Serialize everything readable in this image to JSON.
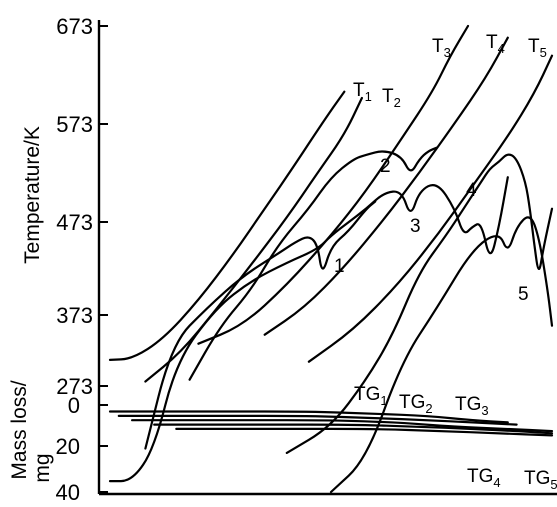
{
  "chart_data": {
    "type": "line",
    "title": "",
    "temperature_axis": {
      "label": "Temperature/K",
      "ticks": [
        "673",
        "573",
        "473",
        "373",
        "273"
      ],
      "tick_values": [
        673,
        573,
        473,
        373,
        273
      ],
      "range": [
        273,
        673
      ]
    },
    "mass_axis": {
      "label_line1": "Mass loss/",
      "label_line2": "mg",
      "ticks": [
        "0",
        "20",
        "40"
      ],
      "tick_values": [
        0,
        20,
        40
      ],
      "range": [
        0,
        40
      ],
      "direction": "down"
    },
    "x_axis": {
      "label": "",
      "ticks": []
    },
    "series": [
      {
        "name": "T",
        "sub": "1",
        "group": "temperature",
        "points": [
          [
            0.0,
            302
          ],
          [
            0.05,
            303
          ],
          [
            0.12,
            325
          ],
          [
            0.2,
            368
          ],
          [
            0.28,
            420
          ],
          [
            0.35,
            470
          ],
          [
            0.42,
            520
          ],
          [
            0.48,
            565
          ],
          [
            0.53,
            600
          ]
        ]
      },
      {
        "name": "T",
        "sub": "2",
        "group": "temperature",
        "points": [
          [
            0.08,
            278
          ],
          [
            0.16,
            310
          ],
          [
            0.24,
            358
          ],
          [
            0.32,
            408
          ],
          [
            0.4,
            460
          ],
          [
            0.47,
            510
          ],
          [
            0.53,
            552
          ],
          [
            0.57,
            593
          ]
        ]
      },
      {
        "name": "T",
        "sub": "3",
        "group": "temperature",
        "points": [
          [
            0.2,
            320
          ],
          [
            0.3,
            340
          ],
          [
            0.4,
            385
          ],
          [
            0.5,
            440
          ],
          [
            0.58,
            490
          ],
          [
            0.66,
            548
          ],
          [
            0.73,
            600
          ],
          [
            0.77,
            640
          ],
          [
            0.81,
            673
          ]
        ]
      },
      {
        "name": "T",
        "sub": "4",
        "group": "temperature",
        "points": [
          [
            0.35,
            330
          ],
          [
            0.44,
            360
          ],
          [
            0.53,
            405
          ],
          [
            0.62,
            458
          ],
          [
            0.7,
            510
          ],
          [
            0.78,
            565
          ],
          [
            0.85,
            615
          ],
          [
            0.9,
            660
          ]
        ]
      },
      {
        "name": "T",
        "sub": "5",
        "group": "temperature",
        "points": [
          [
            0.45,
            300
          ],
          [
            0.55,
            335
          ],
          [
            0.65,
            385
          ],
          [
            0.74,
            440
          ],
          [
            0.82,
            495
          ],
          [
            0.9,
            550
          ],
          [
            0.96,
            598
          ],
          [
            1.0,
            640
          ]
        ]
      },
      {
        "name": "1",
        "group": "dta",
        "points": [
          [
            0.08,
            -20
          ],
          [
            0.14,
            320
          ],
          [
            0.22,
            360
          ],
          [
            0.3,
            395
          ],
          [
            0.38,
            420
          ],
          [
            0.42,
            433
          ],
          [
            0.45,
            440
          ],
          [
            0.47,
            430
          ],
          [
            0.48,
            395
          ],
          [
            0.5,
            428
          ],
          [
            0.54,
            445
          ],
          [
            0.58,
            470
          ],
          [
            0.6,
            478
          ]
        ]
      },
      {
        "name": "2",
        "group": "dta",
        "points": [
          [
            0.18,
            280
          ],
          [
            0.25,
            340
          ],
          [
            0.32,
            380
          ],
          [
            0.38,
            430
          ],
          [
            0.45,
            470
          ],
          [
            0.5,
            505
          ],
          [
            0.55,
            525
          ],
          [
            0.58,
            530
          ],
          [
            0.62,
            535
          ],
          [
            0.66,
            528
          ],
          [
            0.68,
            508
          ],
          [
            0.7,
            525
          ],
          [
            0.72,
            534
          ],
          [
            0.74,
            538
          ]
        ]
      },
      {
        "name": "3",
        "group": "dta",
        "points": [
          [
            0.0,
            -35
          ],
          [
            0.05,
            -35
          ],
          [
            0.1,
            -20
          ],
          [
            0.15,
            300
          ],
          [
            0.24,
            360
          ],
          [
            0.32,
            390
          ],
          [
            0.4,
            410
          ],
          [
            0.47,
            425
          ],
          [
            0.5,
            440
          ],
          [
            0.54,
            455
          ],
          [
            0.58,
            470
          ],
          [
            0.62,
            488
          ],
          [
            0.66,
            490
          ],
          [
            0.68,
            460
          ],
          [
            0.7,
            490
          ],
          [
            0.74,
            500
          ],
          [
            0.78,
            470
          ],
          [
            0.8,
            440
          ],
          [
            0.82,
            450
          ],
          [
            0.84,
            455
          ],
          [
            0.86,
            410
          ],
          [
            0.88,
            450
          ],
          [
            0.9,
            505
          ]
        ]
      },
      {
        "name": "4",
        "group": "dta",
        "points": [
          [
            0.4,
            -22
          ],
          [
            0.5,
            -10
          ],
          [
            0.58,
            280
          ],
          [
            0.64,
            330
          ],
          [
            0.7,
            400
          ],
          [
            0.76,
            440
          ],
          [
            0.8,
            470
          ],
          [
            0.84,
            500
          ],
          [
            0.86,
            515
          ],
          [
            0.88,
            522
          ],
          [
            0.9,
            532
          ],
          [
            0.92,
            526
          ],
          [
            0.94,
            500
          ],
          [
            0.95,
            470
          ],
          [
            0.96,
            430
          ],
          [
            0.97,
            395
          ],
          [
            0.98,
            425
          ],
          [
            1.0,
            470
          ]
        ]
      },
      {
        "name": "5",
        "group": "dta",
        "points": [
          [
            0.5,
            -40
          ],
          [
            0.58,
            -25
          ],
          [
            0.66,
            300
          ],
          [
            0.74,
            360
          ],
          [
            0.82,
            425
          ],
          [
            0.88,
            445
          ],
          [
            0.9,
            420
          ],
          [
            0.92,
            450
          ],
          [
            0.95,
            465
          ],
          [
            0.97,
            440
          ],
          [
            0.99,
            380
          ],
          [
            1.0,
            340
          ]
        ]
      },
      {
        "name": "TG",
        "sub": "1",
        "group": "tg",
        "points": [
          [
            0.0,
            3
          ],
          [
            0.25,
            3
          ],
          [
            0.45,
            3
          ],
          [
            0.6,
            4
          ],
          [
            0.72,
            5
          ],
          [
            0.82,
            7
          ],
          [
            0.9,
            8
          ]
        ]
      },
      {
        "name": "TG",
        "sub": "2",
        "group": "tg",
        "points": [
          [
            0.02,
            5
          ],
          [
            0.25,
            5
          ],
          [
            0.45,
            5
          ],
          [
            0.6,
            6
          ],
          [
            0.72,
            7
          ],
          [
            0.82,
            8
          ],
          [
            0.92,
            9
          ]
        ]
      },
      {
        "name": "TG",
        "sub": "3",
        "group": "tg",
        "points": [
          [
            0.05,
            7
          ],
          [
            0.3,
            7
          ],
          [
            0.5,
            7
          ],
          [
            0.65,
            8
          ],
          [
            0.78,
            10
          ],
          [
            0.9,
            11
          ],
          [
            1.0,
            12
          ]
        ]
      },
      {
        "name": "TG",
        "sub": "4",
        "group": "tg",
        "points": [
          [
            0.1,
            9
          ],
          [
            0.35,
            9
          ],
          [
            0.55,
            9
          ],
          [
            0.7,
            10
          ],
          [
            0.82,
            11
          ],
          [
            0.92,
            12
          ],
          [
            1.0,
            13
          ]
        ]
      },
      {
        "name": "TG",
        "sub": "5",
        "group": "tg",
        "points": [
          [
            0.15,
            11
          ],
          [
            0.4,
            11
          ],
          [
            0.6,
            11
          ],
          [
            0.75,
            12
          ],
          [
            0.88,
            13
          ],
          [
            1.0,
            14
          ]
        ]
      }
    ]
  }
}
